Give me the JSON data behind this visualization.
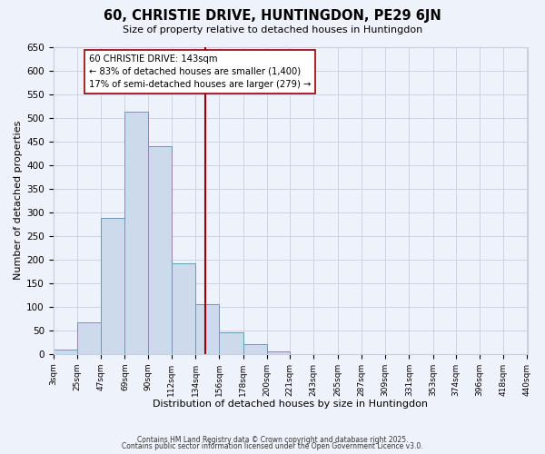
{
  "title": "60, CHRISTIE DRIVE, HUNTINGDON, PE29 6JN",
  "subtitle": "Size of property relative to detached houses in Huntingdon",
  "xlabel": "Distribution of detached houses by size in Huntingdon",
  "ylabel": "Number of detached properties",
  "bar_color": "#ccdaeb",
  "bar_edge_color": "#6699bb",
  "background_color": "#eef2fa",
  "grid_color": "#c8cedc",
  "bin_edges": [
    3,
    25,
    47,
    69,
    90,
    112,
    134,
    156,
    178,
    200,
    221,
    243,
    265,
    287,
    309,
    331,
    353,
    374,
    396,
    418,
    440
  ],
  "bin_labels": [
    "3sqm",
    "25sqm",
    "47sqm",
    "69sqm",
    "90sqm",
    "112sqm",
    "134sqm",
    "156sqm",
    "178sqm",
    "200sqm",
    "221sqm",
    "243sqm",
    "265sqm",
    "287sqm",
    "309sqm",
    "331sqm",
    "353sqm",
    "374sqm",
    "396sqm",
    "418sqm",
    "440sqm"
  ],
  "counts": [
    10,
    67,
    287,
    513,
    440,
    192,
    105,
    45,
    20,
    5,
    0,
    0,
    0,
    0,
    0,
    0,
    0,
    0,
    0,
    0
  ],
  "vline_x": 143,
  "vline_color": "#990000",
  "annotation_lines": [
    "60 CHRISTIE DRIVE: 143sqm",
    "← 83% of detached houses are smaller (1,400)",
    "17% of semi-detached houses are larger (279) →"
  ],
  "annotation_box_color": "#ffffff",
  "annotation_box_edge": "#990000",
  "ylim": [
    0,
    650
  ],
  "yticks": [
    0,
    50,
    100,
    150,
    200,
    250,
    300,
    350,
    400,
    450,
    500,
    550,
    600,
    650
  ],
  "footer1": "Contains HM Land Registry data © Crown copyright and database right 2025.",
  "footer2": "Contains public sector information licensed under the Open Government Licence v3.0."
}
